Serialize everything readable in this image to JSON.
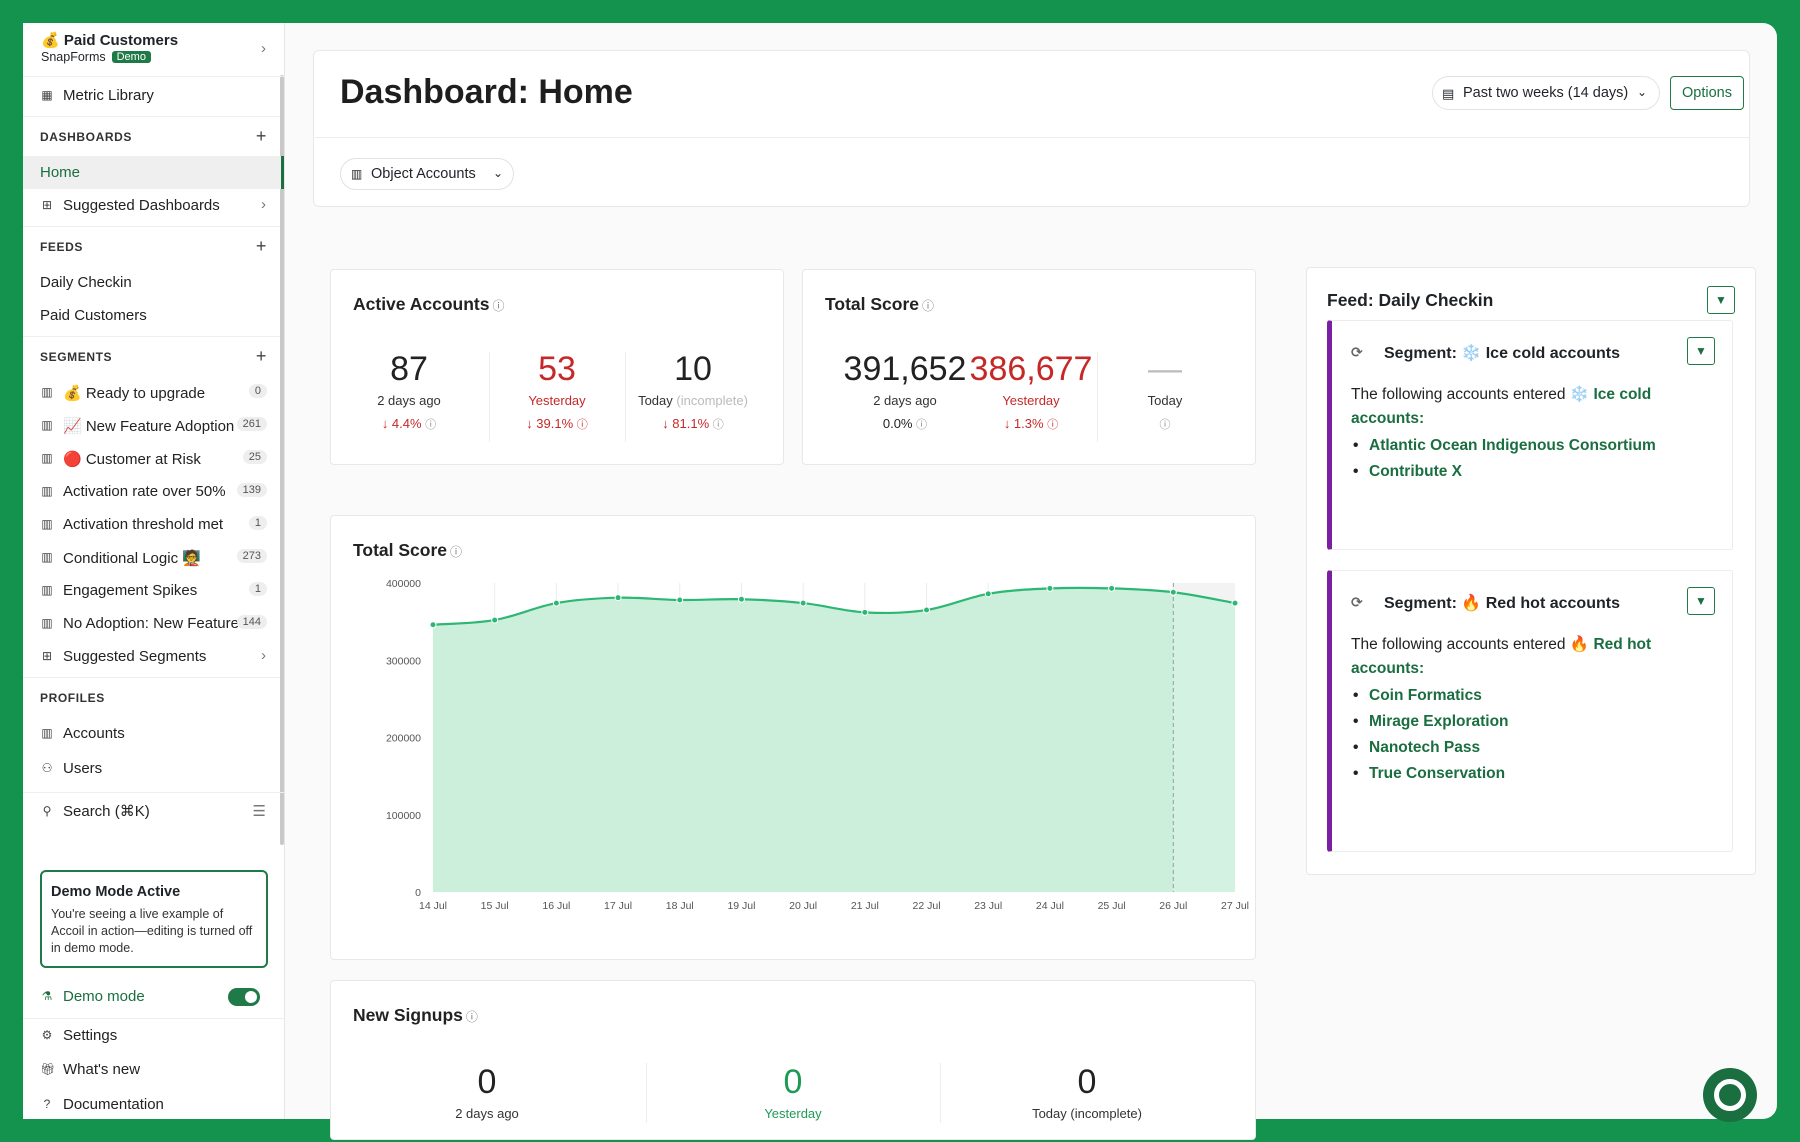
{
  "org": {
    "name": "💰 Paid Customers",
    "product": "SnapForms",
    "badge": "Demo"
  },
  "sidebar": {
    "metric_library": "Metric Library",
    "dashboards_header": "DASHBOARDS",
    "dashboards": [
      {
        "label": "Home"
      },
      {
        "label": "Suggested Dashboards"
      }
    ],
    "feeds_header": "FEEDS",
    "feeds": [
      {
        "label": "Daily Checkin"
      },
      {
        "label": "Paid Customers"
      }
    ],
    "segments_header": "SEGMENTS",
    "segments": [
      {
        "label": "💰 Ready to upgrade",
        "count": "0"
      },
      {
        "label": "📈 New Feature Adoption",
        "count": "261"
      },
      {
        "label": "🔴 Customer at Risk",
        "count": "25"
      },
      {
        "label": "Activation rate over 50%",
        "count": "139"
      },
      {
        "label": "Activation threshold met",
        "count": "1"
      },
      {
        "label": "Conditional Logic 🧑‍🏫",
        "count": "273"
      },
      {
        "label": "Engagement Spikes",
        "count": "1"
      },
      {
        "label": "No Adoption: New Feature",
        "count": "144"
      }
    ],
    "suggested_segments": "Suggested Segments",
    "profiles_header": "PROFILES",
    "profiles": [
      {
        "label": "Accounts"
      },
      {
        "label": "Users"
      }
    ],
    "search": "Search (⌘K)",
    "demo_card": {
      "title": "Demo Mode Active",
      "text": "You're seeing a live example of Accoil in action—editing is turned off in demo mode."
    },
    "demo_mode": "Demo mode",
    "settings": "Settings",
    "whats_new": "What's new",
    "documentation": "Documentation"
  },
  "header": {
    "title": "Dashboard: Home",
    "date_range": "Past two weeks (14 days)",
    "options": "Options",
    "object_filter": "Object Accounts"
  },
  "active_accounts": {
    "title": "Active Accounts",
    "stats": [
      {
        "value": "87",
        "label": "2 days ago",
        "change": "↓ 4.4%"
      },
      {
        "value": "53",
        "label": "Yesterday",
        "change": "↓ 39.1%"
      },
      {
        "value": "10",
        "label": "Today",
        "label_note": "(incomplete)",
        "change": "↓ 81.1%"
      }
    ]
  },
  "total_score_kpi": {
    "title": "Total Score",
    "stats": [
      {
        "value": "391,652",
        "label": "2 days ago",
        "change": "0.0%"
      },
      {
        "value": "386,677",
        "label": "Yesterday",
        "change": "↓ 1.3%"
      },
      {
        "value": "—",
        "label": "Today",
        "change": ""
      }
    ]
  },
  "total_score_chart_title": "Total Score",
  "chart_data": {
    "type": "area",
    "title": "Total Score",
    "categories": [
      "14 Jul",
      "15 Jul",
      "16 Jul",
      "17 Jul",
      "18 Jul",
      "19 Jul",
      "20 Jul",
      "21 Jul",
      "22 Jul",
      "23 Jul",
      "24 Jul",
      "25 Jul",
      "26 Jul",
      "27 Jul"
    ],
    "values": [
      346000,
      352000,
      374000,
      381000,
      378000,
      379000,
      374000,
      362000,
      365000,
      386000,
      393000,
      393000,
      388000,
      374000
    ],
    "ylim": [
      0,
      400000
    ],
    "yticks": [
      "400000",
      "300000",
      "200000",
      "100000",
      "0"
    ],
    "incomplete_from": "26 Jul",
    "color": "#2db774",
    "fill": "#c8eed9"
  },
  "new_signups": {
    "title": "New Signups",
    "stats": [
      {
        "value": "0",
        "label": "2 days ago"
      },
      {
        "value": "0",
        "label": "Yesterday"
      },
      {
        "value": "0",
        "label": "Today (incomplete)"
      }
    ]
  },
  "feed": {
    "title": "Feed: Daily Checkin",
    "segments": [
      {
        "heading_prefix": "Segment:",
        "heading_name": "❄️ Ice cold accounts",
        "intro": "The following accounts entered",
        "link": "❄️ Ice cold accounts:",
        "accounts": [
          "Atlantic Ocean Indigenous Consortium",
          "Contribute X"
        ]
      },
      {
        "heading_prefix": "Segment:",
        "heading_name": "🔥 Red hot accounts",
        "intro": "The following accounts entered",
        "link": "🔥 Red hot accounts:",
        "accounts": [
          "Coin Formatics",
          "Mirage Exploration",
          "Nanotech Pass",
          "True Conservation"
        ]
      }
    ]
  }
}
